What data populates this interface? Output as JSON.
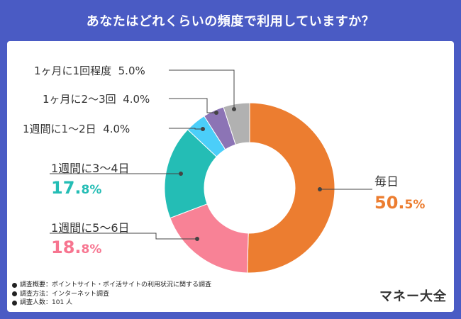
{
  "header": {
    "title": "あなたはどれくらいの頻度で利用していますか？"
  },
  "chart_data": {
    "type": "pie",
    "donut": true,
    "title": "あなたはどれくらいの頻度で利用していますか？",
    "categories": [
      "毎日",
      "1週間に5〜6日",
      "1週間に3〜4日",
      "1週間に1〜2日",
      "1ヶ月に2〜3回",
      "1ヶ月に1回程度"
    ],
    "values": [
      50.5,
      18.8,
      17.8,
      4.0,
      4.0,
      5.0
    ],
    "colors": [
      "#ec7d30",
      "#f88296",
      "#24bdb5",
      "#4bcef9",
      "#8c74b5",
      "#b1b1b1"
    ],
    "value_labels": {
      "daily": "50.5%",
      "d56_int": "18.",
      "d56_frac": "8%",
      "d34_int": "17.",
      "d34_frac": "8%",
      "daily_int": "50.",
      "daily_frac": "5%",
      "w12": "4.0%",
      "m23": "4.0%",
      "m1": "5.0%"
    }
  },
  "labels": {
    "daily": "毎日",
    "d56": "1週間に5〜6日",
    "d34": "1週間に3〜4日",
    "w12": "1週間に1〜2日",
    "m23": "1ヶ月に2〜3回",
    "m1": "1ヶ月に1回程度"
  },
  "notes": [
    "調査概要：ポイントサイト・ポイ活サイトの利用状況に関する調査",
    "調査方法：インターネット調査",
    "調査人数：101 人"
  ],
  "brand": "マネー大全"
}
